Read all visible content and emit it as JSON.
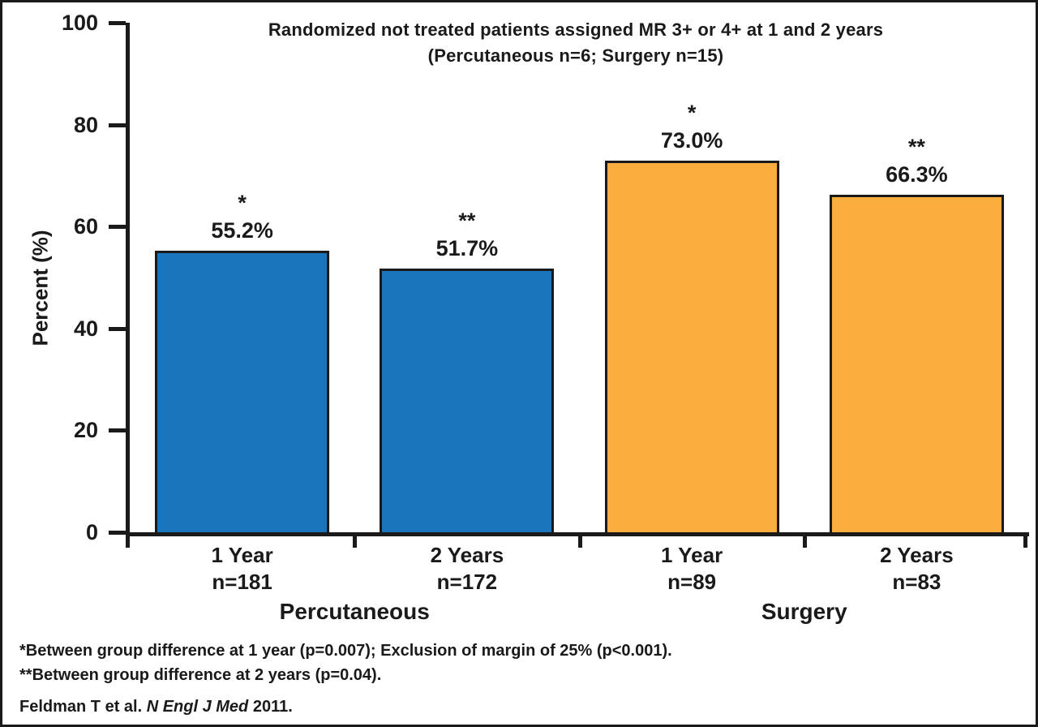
{
  "chart_data": {
    "type": "bar",
    "title_line1": "Randomized not treated patients assigned MR 3+ or 4+ at 1 and 2 years",
    "title_line2": "(Percutaneous n=6; Surgery n=15)",
    "ylabel": "Percent (%)",
    "ylim": [
      0,
      100
    ],
    "yticks": [
      0,
      20,
      40,
      60,
      80,
      100
    ],
    "grid": false,
    "legend": "none",
    "categories": [
      "1 Year",
      "2 Years",
      "1 Year",
      "2 Years"
    ],
    "groups": [
      {
        "name": "Percutaneous",
        "color": "#1B75BC",
        "bar_span": [
          0,
          1
        ]
      },
      {
        "name": "Surgery",
        "color": "#FBAE3E",
        "bar_span": [
          2,
          3
        ]
      }
    ],
    "bars": [
      {
        "group": "Percutaneous",
        "category": "1 Year",
        "n_label": "n=181",
        "value": 55.2,
        "value_label": "55.2%",
        "sig": "*",
        "color": "#1B75BC"
      },
      {
        "group": "Percutaneous",
        "category": "2 Years",
        "n_label": "n=172",
        "value": 51.7,
        "value_label": "51.7%",
        "sig": "**",
        "color": "#1B75BC"
      },
      {
        "group": "Surgery",
        "category": "1 Year",
        "n_label": "n=89",
        "value": 73.0,
        "value_label": "73.0%",
        "sig": "*",
        "color": "#FBAE3E"
      },
      {
        "group": "Surgery",
        "category": "2 Years",
        "n_label": "n=83",
        "value": 66.3,
        "value_label": "66.3%",
        "sig": "**",
        "color": "#FBAE3E"
      }
    ],
    "axis_color": "#1a1a1a",
    "background_color": "#ffffff"
  },
  "footnotes": {
    "line1": "*Between group difference at 1 year (p=0.007); Exclusion of margin of 25% (p<0.001).",
    "line2": "**Between group difference at 2 years (p=0.04)."
  },
  "citation": {
    "prefix": "Feldman T et al. ",
    "journal": "N Engl J Med",
    "suffix": " 2011."
  }
}
